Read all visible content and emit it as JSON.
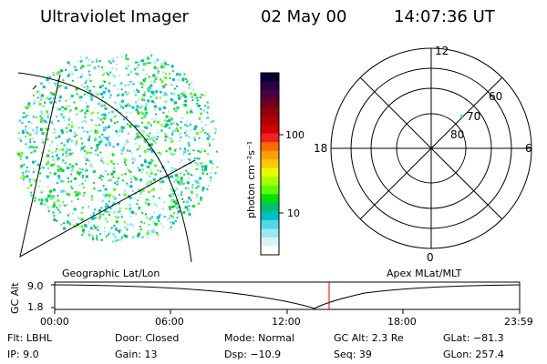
{
  "header": {
    "title": "Ultraviolet Imager",
    "date": "02 May 00",
    "time": "14:07:36 UT"
  },
  "colorbar": {
    "unit_label": "photon cm⁻²s⁻¹",
    "ticks": [
      "100",
      "10"
    ],
    "colors": [
      "#000033",
      "#2a0045",
      "#4a0040",
      "#6d0020",
      "#8f000a",
      "#b00000",
      "#d40000",
      "#f42020",
      "#ff6a00",
      "#ffa000",
      "#ffc800",
      "#e6ff00",
      "#a8ff00",
      "#5cff00",
      "#00e000",
      "#00c070",
      "#00c0c0",
      "#50d8e6",
      "#9aeaf0",
      "#d8f4f8",
      "#ffffff"
    ]
  },
  "polar_plot": {
    "clock_labels": {
      "top": "12",
      "left": "18",
      "right": "6",
      "bottom": "0"
    },
    "lat_labels": [
      "60",
      "70",
      "80"
    ]
  },
  "footer_titles": {
    "left": "Geographic Lat/Lon",
    "right": "Apex MLat/MLT"
  },
  "gc_alt": {
    "label": "GC Alt",
    "y_ticks": [
      "9.0",
      "1.8"
    ],
    "x_ticks": [
      "00:00",
      "06:00",
      "12:00",
      "18:00",
      "23:59"
    ]
  },
  "info": {
    "row1": {
      "flt": "Flt: LBHL",
      "door": "Door: Closed",
      "mode": "Mode: Normal",
      "gcalt": "GC Alt: 2.3 Re",
      "glat": "GLat: −81.3"
    },
    "row2": {
      "ip": "IP:  9.0",
      "gain": "Gain: 13",
      "dsp": "Dsp:  −10.9",
      "seq": "Seq: 39",
      "glon": "GLon: 257.4"
    }
  }
}
